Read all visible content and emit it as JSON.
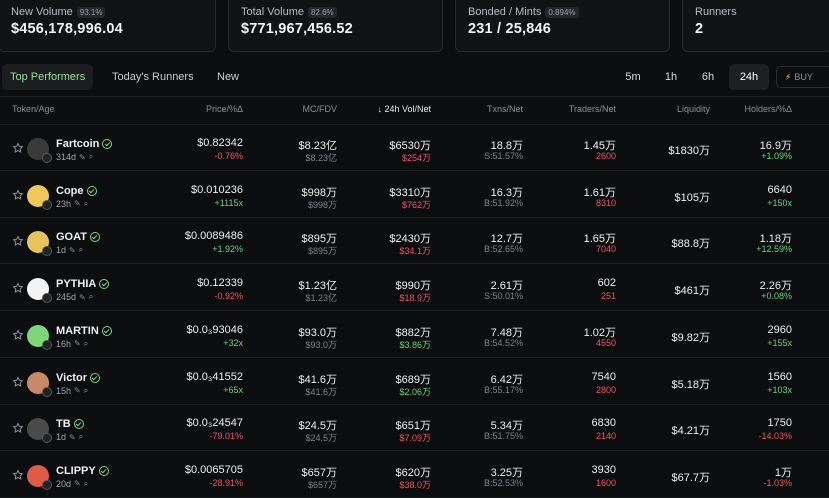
{
  "stats": [
    {
      "label": "New Volume",
      "pct": "93.1%",
      "value": "$456,178,996.04"
    },
    {
      "label": "Total Volume",
      "pct": "82.6%",
      "value": "$771,967,456.52"
    },
    {
      "label": "Bonded / Mints",
      "pct": "0.894%",
      "value": "231 / 25,846"
    },
    {
      "label": "Runners",
      "pct": "",
      "value": "2"
    }
  ],
  "tabs": [
    "Top Performers",
    "Today's Runners",
    "New"
  ],
  "timeframes": [
    "5m",
    "1h",
    "6h",
    "24h"
  ],
  "buy_label": "BUY",
  "columns": [
    "Token/Age",
    "Price/%Δ",
    "MC/FDV",
    "↓ 24h Vol/Net",
    "Txns/Net",
    "Traders/Net",
    "Liquidity",
    "Holders/%Δ"
  ],
  "rows": [
    {
      "name": "Fartcoin",
      "age": "314d",
      "price": "$0.82342",
      "price_chg": "-0.76%",
      "mc": "$8.23亿",
      "fdv": "$8.23亿",
      "vol": "$6530万",
      "net": "$254万",
      "txns": "18.8万",
      "txns_net": "S:51.57%",
      "traders": "1.45万",
      "traders_net": "2600",
      "liq": "$1830万",
      "holders": "16.9万",
      "holders_chg": "+1.09%"
    },
    {
      "name": "Cope",
      "age": "23h",
      "price": "$0.010236",
      "price_chg": "+1115x",
      "mc": "$998万",
      "fdv": "$998万",
      "vol": "$3310万",
      "net": "$762万",
      "txns": "16.3万",
      "txns_net": "B:51.92%",
      "traders": "1.61万",
      "traders_net": "8310",
      "liq": "$105万",
      "holders": "6640",
      "holders_chg": "+150x"
    },
    {
      "name": "GOAT",
      "age": "1d",
      "price": "$0.0089486",
      "price_chg": "+1.92%",
      "mc": "$895万",
      "fdv": "$895万",
      "vol": "$2430万",
      "net": "$34.1万",
      "txns": "12.7万",
      "txns_net": "B:52.65%",
      "traders": "1.65万",
      "traders_net": "7040",
      "liq": "$88.8万",
      "holders": "1.18万",
      "holders_chg": "+12.59%"
    },
    {
      "name": "PYTHIA",
      "age": "245d",
      "price": "$0.12339",
      "price_chg": "-0.92%",
      "mc": "$1.23亿",
      "fdv": "$1.23亿",
      "vol": "$990万",
      "net": "$18.9万",
      "txns": "2.61万",
      "txns_net": "S:50.01%",
      "traders": "602",
      "traders_net": "251",
      "liq": "$461万",
      "holders": "2.26万",
      "holders_chg": "+0.08%"
    },
    {
      "name": "MARTIN",
      "age": "16h",
      "price": "$0.0₃93046",
      "price_chg": "+32x",
      "mc": "$93.0万",
      "fdv": "$93.0万",
      "vol": "$882万",
      "net": "$3.86万",
      "txns": "7.48万",
      "txns_net": "B:54.52%",
      "traders": "1.02万",
      "traders_net": "4550",
      "liq": "$9.82万",
      "holders": "2960",
      "holders_chg": "+155x"
    },
    {
      "name": "Victor",
      "age": "15h",
      "price": "$0.0₃41552",
      "price_chg": "+65x",
      "mc": "$41.6万",
      "fdv": "$41.6万",
      "vol": "$689万",
      "net": "$2.06万",
      "txns": "6.42万",
      "txns_net": "B:55.17%",
      "traders": "7540",
      "traders_net": "2800",
      "liq": "$5.18万",
      "holders": "1560",
      "holders_chg": "+103x"
    },
    {
      "name": "TB",
      "age": "1d",
      "price": "$0.0₃24547",
      "price_chg": "-79.01%",
      "mc": "$24.5万",
      "fdv": "$24.5万",
      "vol": "$651万",
      "net": "$7.09万",
      "txns": "5.34万",
      "txns_net": "B:51.75%",
      "traders": "6830",
      "traders_net": "2140",
      "liq": "$4.21万",
      "holders": "1750",
      "holders_chg": "-14.03%"
    },
    {
      "name": "CLIPPY",
      "age": "20d",
      "price": "$0.0065705",
      "price_chg": "-28.91%",
      "mc": "$657万",
      "fdv": "$657万",
      "vol": "$620万",
      "net": "$38.0万",
      "txns": "3.25万",
      "txns_net": "B:52.53%",
      "traders": "3930",
      "traders_net": "1600",
      "liq": "$67.7万",
      "holders": "1万",
      "holders_chg": "-1.03%"
    }
  ],
  "colors": {
    "accent_green": "#66d584",
    "accent_red": "#f0566a",
    "tab_active": "#8fe39a"
  },
  "avatar_colors": [
    "#3a3a3a",
    "#f0c85a",
    "#e8c45a",
    "#f4f4f4",
    "#7fd67a",
    "#c98a6a",
    "#4a4a4a",
    "#e05a4a"
  ]
}
